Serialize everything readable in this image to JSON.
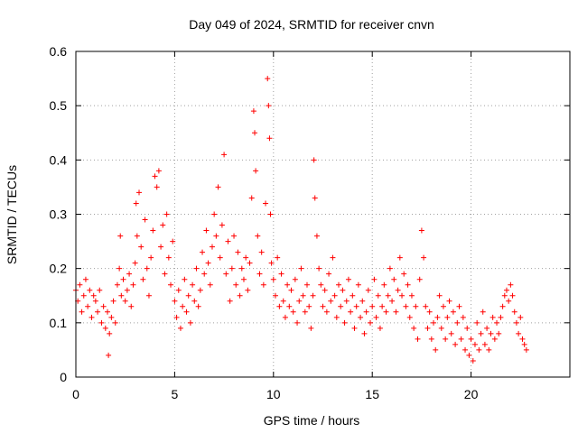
{
  "chart_data": {
    "type": "scatter",
    "title": "Day 049 of 2024, SRMTID for receiver cnvn",
    "xlabel": "GPS time / hours",
    "ylabel": "SRMTID / TECUs",
    "xlim": [
      0,
      25
    ],
    "ylim": [
      0,
      0.6
    ],
    "xticks": [
      0,
      5,
      10,
      15,
      20
    ],
    "xtick_labels": [
      "0",
      "5",
      "10",
      "15",
      "20"
    ],
    "yticks": [
      0,
      0.1,
      0.2,
      0.3,
      0.4,
      0.5,
      0.6
    ],
    "ytick_labels": [
      "0",
      "0.1",
      "0.2",
      "0.3",
      "0.4",
      "0.5",
      "0.6"
    ],
    "grid": true,
    "marker": "plus",
    "marker_color": "#ff0000",
    "series": [
      {
        "name": "SRMTID",
        "points": [
          [
            0.0,
            0.16
          ],
          [
            0.1,
            0.14
          ],
          [
            0.2,
            0.17
          ],
          [
            0.3,
            0.12
          ],
          [
            0.4,
            0.15
          ],
          [
            0.5,
            0.18
          ],
          [
            0.6,
            0.13
          ],
          [
            0.7,
            0.16
          ],
          [
            0.8,
            0.11
          ],
          [
            0.9,
            0.15
          ],
          [
            1.0,
            0.14
          ],
          [
            1.1,
            0.12
          ],
          [
            1.2,
            0.16
          ],
          [
            1.3,
            0.1
          ],
          [
            1.4,
            0.13
          ],
          [
            1.5,
            0.09
          ],
          [
            1.6,
            0.12
          ],
          [
            1.65,
            0.04
          ],
          [
            1.7,
            0.08
          ],
          [
            1.8,
            0.11
          ],
          [
            1.9,
            0.14
          ],
          [
            2.0,
            0.1
          ],
          [
            2.1,
            0.17
          ],
          [
            2.2,
            0.2
          ],
          [
            2.25,
            0.26
          ],
          [
            2.3,
            0.15
          ],
          [
            2.4,
            0.18
          ],
          [
            2.5,
            0.14
          ],
          [
            2.6,
            0.16
          ],
          [
            2.7,
            0.19
          ],
          [
            2.8,
            0.13
          ],
          [
            2.9,
            0.17
          ],
          [
            3.0,
            0.21
          ],
          [
            3.05,
            0.32
          ],
          [
            3.1,
            0.26
          ],
          [
            3.2,
            0.34
          ],
          [
            3.3,
            0.24
          ],
          [
            3.4,
            0.18
          ],
          [
            3.5,
            0.29
          ],
          [
            3.6,
            0.2
          ],
          [
            3.7,
            0.15
          ],
          [
            3.8,
            0.22
          ],
          [
            3.9,
            0.27
          ],
          [
            4.0,
            0.37
          ],
          [
            4.1,
            0.35
          ],
          [
            4.2,
            0.38
          ],
          [
            4.3,
            0.24
          ],
          [
            4.4,
            0.28
          ],
          [
            4.5,
            0.19
          ],
          [
            4.6,
            0.3
          ],
          [
            4.7,
            0.22
          ],
          [
            4.8,
            0.17
          ],
          [
            4.9,
            0.25
          ],
          [
            5.0,
            0.14
          ],
          [
            5.1,
            0.11
          ],
          [
            5.2,
            0.16
          ],
          [
            5.3,
            0.09
          ],
          [
            5.4,
            0.13
          ],
          [
            5.5,
            0.18
          ],
          [
            5.6,
            0.12
          ],
          [
            5.7,
            0.15
          ],
          [
            5.8,
            0.1
          ],
          [
            5.9,
            0.17
          ],
          [
            6.0,
            0.14
          ],
          [
            6.1,
            0.2
          ],
          [
            6.2,
            0.13
          ],
          [
            6.3,
            0.16
          ],
          [
            6.4,
            0.23
          ],
          [
            6.5,
            0.19
          ],
          [
            6.6,
            0.27
          ],
          [
            6.7,
            0.21
          ],
          [
            6.8,
            0.17
          ],
          [
            6.9,
            0.24
          ],
          [
            7.0,
            0.3
          ],
          [
            7.1,
            0.26
          ],
          [
            7.2,
            0.35
          ],
          [
            7.3,
            0.22
          ],
          [
            7.4,
            0.28
          ],
          [
            7.5,
            0.41
          ],
          [
            7.6,
            0.19
          ],
          [
            7.7,
            0.25
          ],
          [
            7.8,
            0.14
          ],
          [
            7.9,
            0.2
          ],
          [
            8.0,
            0.26
          ],
          [
            8.1,
            0.17
          ],
          [
            8.2,
            0.23
          ],
          [
            8.3,
            0.15
          ],
          [
            8.4,
            0.2
          ],
          [
            8.5,
            0.18
          ],
          [
            8.6,
            0.22
          ],
          [
            8.7,
            0.16
          ],
          [
            8.8,
            0.21
          ],
          [
            8.9,
            0.33
          ],
          [
            9.0,
            0.49
          ],
          [
            9.05,
            0.45
          ],
          [
            9.1,
            0.38
          ],
          [
            9.2,
            0.26
          ],
          [
            9.3,
            0.19
          ],
          [
            9.4,
            0.23
          ],
          [
            9.5,
            0.17
          ],
          [
            9.6,
            0.32
          ],
          [
            9.7,
            0.55
          ],
          [
            9.75,
            0.5
          ],
          [
            9.8,
            0.44
          ],
          [
            9.85,
            0.3
          ],
          [
            9.9,
            0.21
          ],
          [
            10.0,
            0.18
          ],
          [
            10.1,
            0.15
          ],
          [
            10.2,
            0.22
          ],
          [
            10.3,
            0.13
          ],
          [
            10.4,
            0.19
          ],
          [
            10.5,
            0.14
          ],
          [
            10.6,
            0.11
          ],
          [
            10.7,
            0.17
          ],
          [
            10.8,
            0.13
          ],
          [
            10.9,
            0.16
          ],
          [
            11.0,
            0.12
          ],
          [
            11.1,
            0.18
          ],
          [
            11.2,
            0.1
          ],
          [
            11.3,
            0.14
          ],
          [
            11.4,
            0.2
          ],
          [
            11.5,
            0.15
          ],
          [
            11.6,
            0.12
          ],
          [
            11.7,
            0.17
          ],
          [
            11.8,
            0.13
          ],
          [
            11.9,
            0.09
          ],
          [
            12.0,
            0.15
          ],
          [
            12.05,
            0.4
          ],
          [
            12.1,
            0.33
          ],
          [
            12.2,
            0.26
          ],
          [
            12.3,
            0.2
          ],
          [
            12.4,
            0.17
          ],
          [
            12.5,
            0.13
          ],
          [
            12.6,
            0.16
          ],
          [
            12.7,
            0.12
          ],
          [
            12.8,
            0.19
          ],
          [
            12.9,
            0.14
          ],
          [
            13.0,
            0.22
          ],
          [
            13.1,
            0.15
          ],
          [
            13.2,
            0.11
          ],
          [
            13.3,
            0.17
          ],
          [
            13.4,
            0.13
          ],
          [
            13.5,
            0.16
          ],
          [
            13.6,
            0.1
          ],
          [
            13.7,
            0.14
          ],
          [
            13.8,
            0.18
          ],
          [
            13.9,
            0.12
          ],
          [
            14.0,
            0.15
          ],
          [
            14.1,
            0.09
          ],
          [
            14.2,
            0.13
          ],
          [
            14.3,
            0.17
          ],
          [
            14.4,
            0.11
          ],
          [
            14.5,
            0.14
          ],
          [
            14.6,
            0.08
          ],
          [
            14.7,
            0.12
          ],
          [
            14.8,
            0.16
          ],
          [
            14.9,
            0.1
          ],
          [
            15.0,
            0.13
          ],
          [
            15.1,
            0.18
          ],
          [
            15.2,
            0.11
          ],
          [
            15.3,
            0.15
          ],
          [
            15.4,
            0.09
          ],
          [
            15.5,
            0.13
          ],
          [
            15.6,
            0.17
          ],
          [
            15.7,
            0.12
          ],
          [
            15.8,
            0.15
          ],
          [
            15.9,
            0.2
          ],
          [
            16.0,
            0.14
          ],
          [
            16.1,
            0.18
          ],
          [
            16.2,
            0.12
          ],
          [
            16.3,
            0.16
          ],
          [
            16.4,
            0.22
          ],
          [
            16.5,
            0.15
          ],
          [
            16.6,
            0.19
          ],
          [
            16.7,
            0.13
          ],
          [
            16.8,
            0.17
          ],
          [
            16.9,
            0.11
          ],
          [
            17.0,
            0.15
          ],
          [
            17.1,
            0.09
          ],
          [
            17.2,
            0.13
          ],
          [
            17.3,
            0.07
          ],
          [
            17.4,
            0.18
          ],
          [
            17.5,
            0.27
          ],
          [
            17.6,
            0.22
          ],
          [
            17.7,
            0.13
          ],
          [
            17.8,
            0.09
          ],
          [
            17.9,
            0.12
          ],
          [
            18.0,
            0.07
          ],
          [
            18.1,
            0.1
          ],
          [
            18.2,
            0.05
          ],
          [
            18.3,
            0.11
          ],
          [
            18.4,
            0.15
          ],
          [
            18.5,
            0.09
          ],
          [
            18.6,
            0.13
          ],
          [
            18.7,
            0.07
          ],
          [
            18.8,
            0.11
          ],
          [
            18.9,
            0.14
          ],
          [
            19.0,
            0.08
          ],
          [
            19.1,
            0.12
          ],
          [
            19.2,
            0.06
          ],
          [
            19.3,
            0.1
          ],
          [
            19.4,
            0.13
          ],
          [
            19.5,
            0.07
          ],
          [
            19.6,
            0.11
          ],
          [
            19.7,
            0.05
          ],
          [
            19.8,
            0.09
          ],
          [
            19.9,
            0.04
          ],
          [
            20.0,
            0.07
          ],
          [
            20.1,
            0.03
          ],
          [
            20.2,
            0.06
          ],
          [
            20.3,
            0.1
          ],
          [
            20.4,
            0.05
          ],
          [
            20.5,
            0.08
          ],
          [
            20.6,
            0.12
          ],
          [
            20.7,
            0.06
          ],
          [
            20.8,
            0.09
          ],
          [
            20.9,
            0.05
          ],
          [
            21.0,
            0.08
          ],
          [
            21.1,
            0.11
          ],
          [
            21.2,
            0.07
          ],
          [
            21.3,
            0.1
          ],
          [
            21.4,
            0.08
          ],
          [
            21.5,
            0.11
          ],
          [
            21.6,
            0.13
          ],
          [
            21.7,
            0.15
          ],
          [
            21.8,
            0.16
          ],
          [
            21.9,
            0.14
          ],
          [
            22.0,
            0.17
          ],
          [
            22.1,
            0.15
          ],
          [
            22.2,
            0.12
          ],
          [
            22.3,
            0.1
          ],
          [
            22.4,
            0.08
          ],
          [
            22.5,
            0.11
          ],
          [
            22.6,
            0.07
          ],
          [
            22.7,
            0.06
          ],
          [
            22.8,
            0.05
          ]
        ]
      }
    ]
  }
}
